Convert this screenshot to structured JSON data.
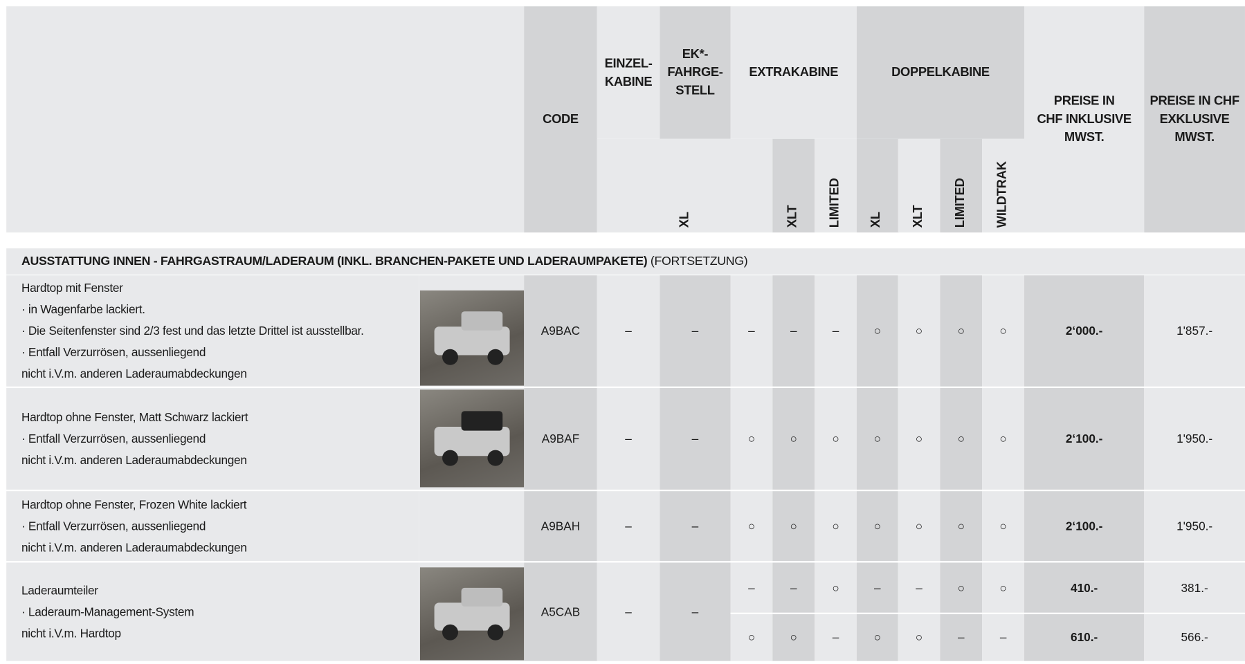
{
  "header": {
    "code": "CODE",
    "einzelkabine": [
      "EINZEL-",
      "KABINE"
    ],
    "ek_fahrgestell": [
      "EK*-",
      "FAHRGE-",
      "STELL"
    ],
    "extrakabine": "EXTRAKABINE",
    "doppelkabine": "DOPPELKABINE",
    "sub": [
      "XL",
      "XLT",
      "LIMITED",
      "XL",
      "XLT",
      "LIMITED",
      "WILDTRAK"
    ],
    "price_incl": [
      "PREISE IN",
      "CHF INKLUSIVE",
      "MWST."
    ],
    "price_excl": [
      "PREISE IN CHF",
      "EXKLUSIVE",
      "MWST."
    ]
  },
  "section": {
    "title": "AUSSTATTUNG INNEN - FAHRGASTRAUM/LADERAUM (INKL. BRANCHEN-PAKETE UND LADERAUMPAKETE)",
    "note": "(FORTSETZUNG)"
  },
  "rows": [
    {
      "lines": [
        "Hardtop mit Fenster",
        "·  in Wagenfarbe lackiert.",
        "·  Die Seitenfenster sind 2/3 fest und das letzte Drittel ist ausstellbar.",
        "·  Entfall Verzurrösen, aussenliegend",
        "nicht i.V.m. anderen Laderaumabdeckungen"
      ],
      "code": "A9BAC",
      "cells": [
        "–",
        "–",
        "–",
        "–",
        "–",
        "○",
        "○",
        "○",
        "○",
        "2‘000.-",
        "1'857.-"
      ]
    },
    {
      "lines": [
        "Hardtop ohne Fenster, Matt Schwarz lackiert",
        "·  Entfall Verzurrösen, aussenliegend",
        "nicht i.V.m. anderen Laderaumabdeckungen"
      ],
      "code": "A9BAF",
      "cells": [
        "–",
        "–",
        "○",
        "○",
        "○",
        "○",
        "○",
        "○",
        "○",
        "2‘100.-",
        "1'950.-"
      ]
    },
    {
      "lines": [
        "Hardtop ohne Fenster, Frozen White lackiert",
        "·  Entfall Verzurrösen, aussenliegend",
        "nicht i.V.m. anderen Laderaumabdeckungen"
      ],
      "code": "A9BAH",
      "cells": [
        "–",
        "–",
        "○",
        "○",
        "○",
        "○",
        "○",
        "○",
        "○",
        "2‘100.-",
        "1'950.-"
      ]
    },
    {
      "lines": [
        "Laderaumteiler",
        "·  Laderaum-Management-System",
        "nicht i.V.m. Hardtop"
      ],
      "code": "A5CAB",
      "cells": [
        "–",
        "–",
        [
          "–",
          "○"
        ],
        [
          "–",
          "○"
        ],
        [
          "○",
          "–"
        ],
        [
          "–",
          "○"
        ],
        [
          "–",
          "○"
        ],
        [
          "○",
          "–"
        ],
        [
          "○",
          "–"
        ],
        [
          "410.-",
          "610.-"
        ],
        [
          "381.-",
          "566.-"
        ]
      ]
    }
  ]
}
